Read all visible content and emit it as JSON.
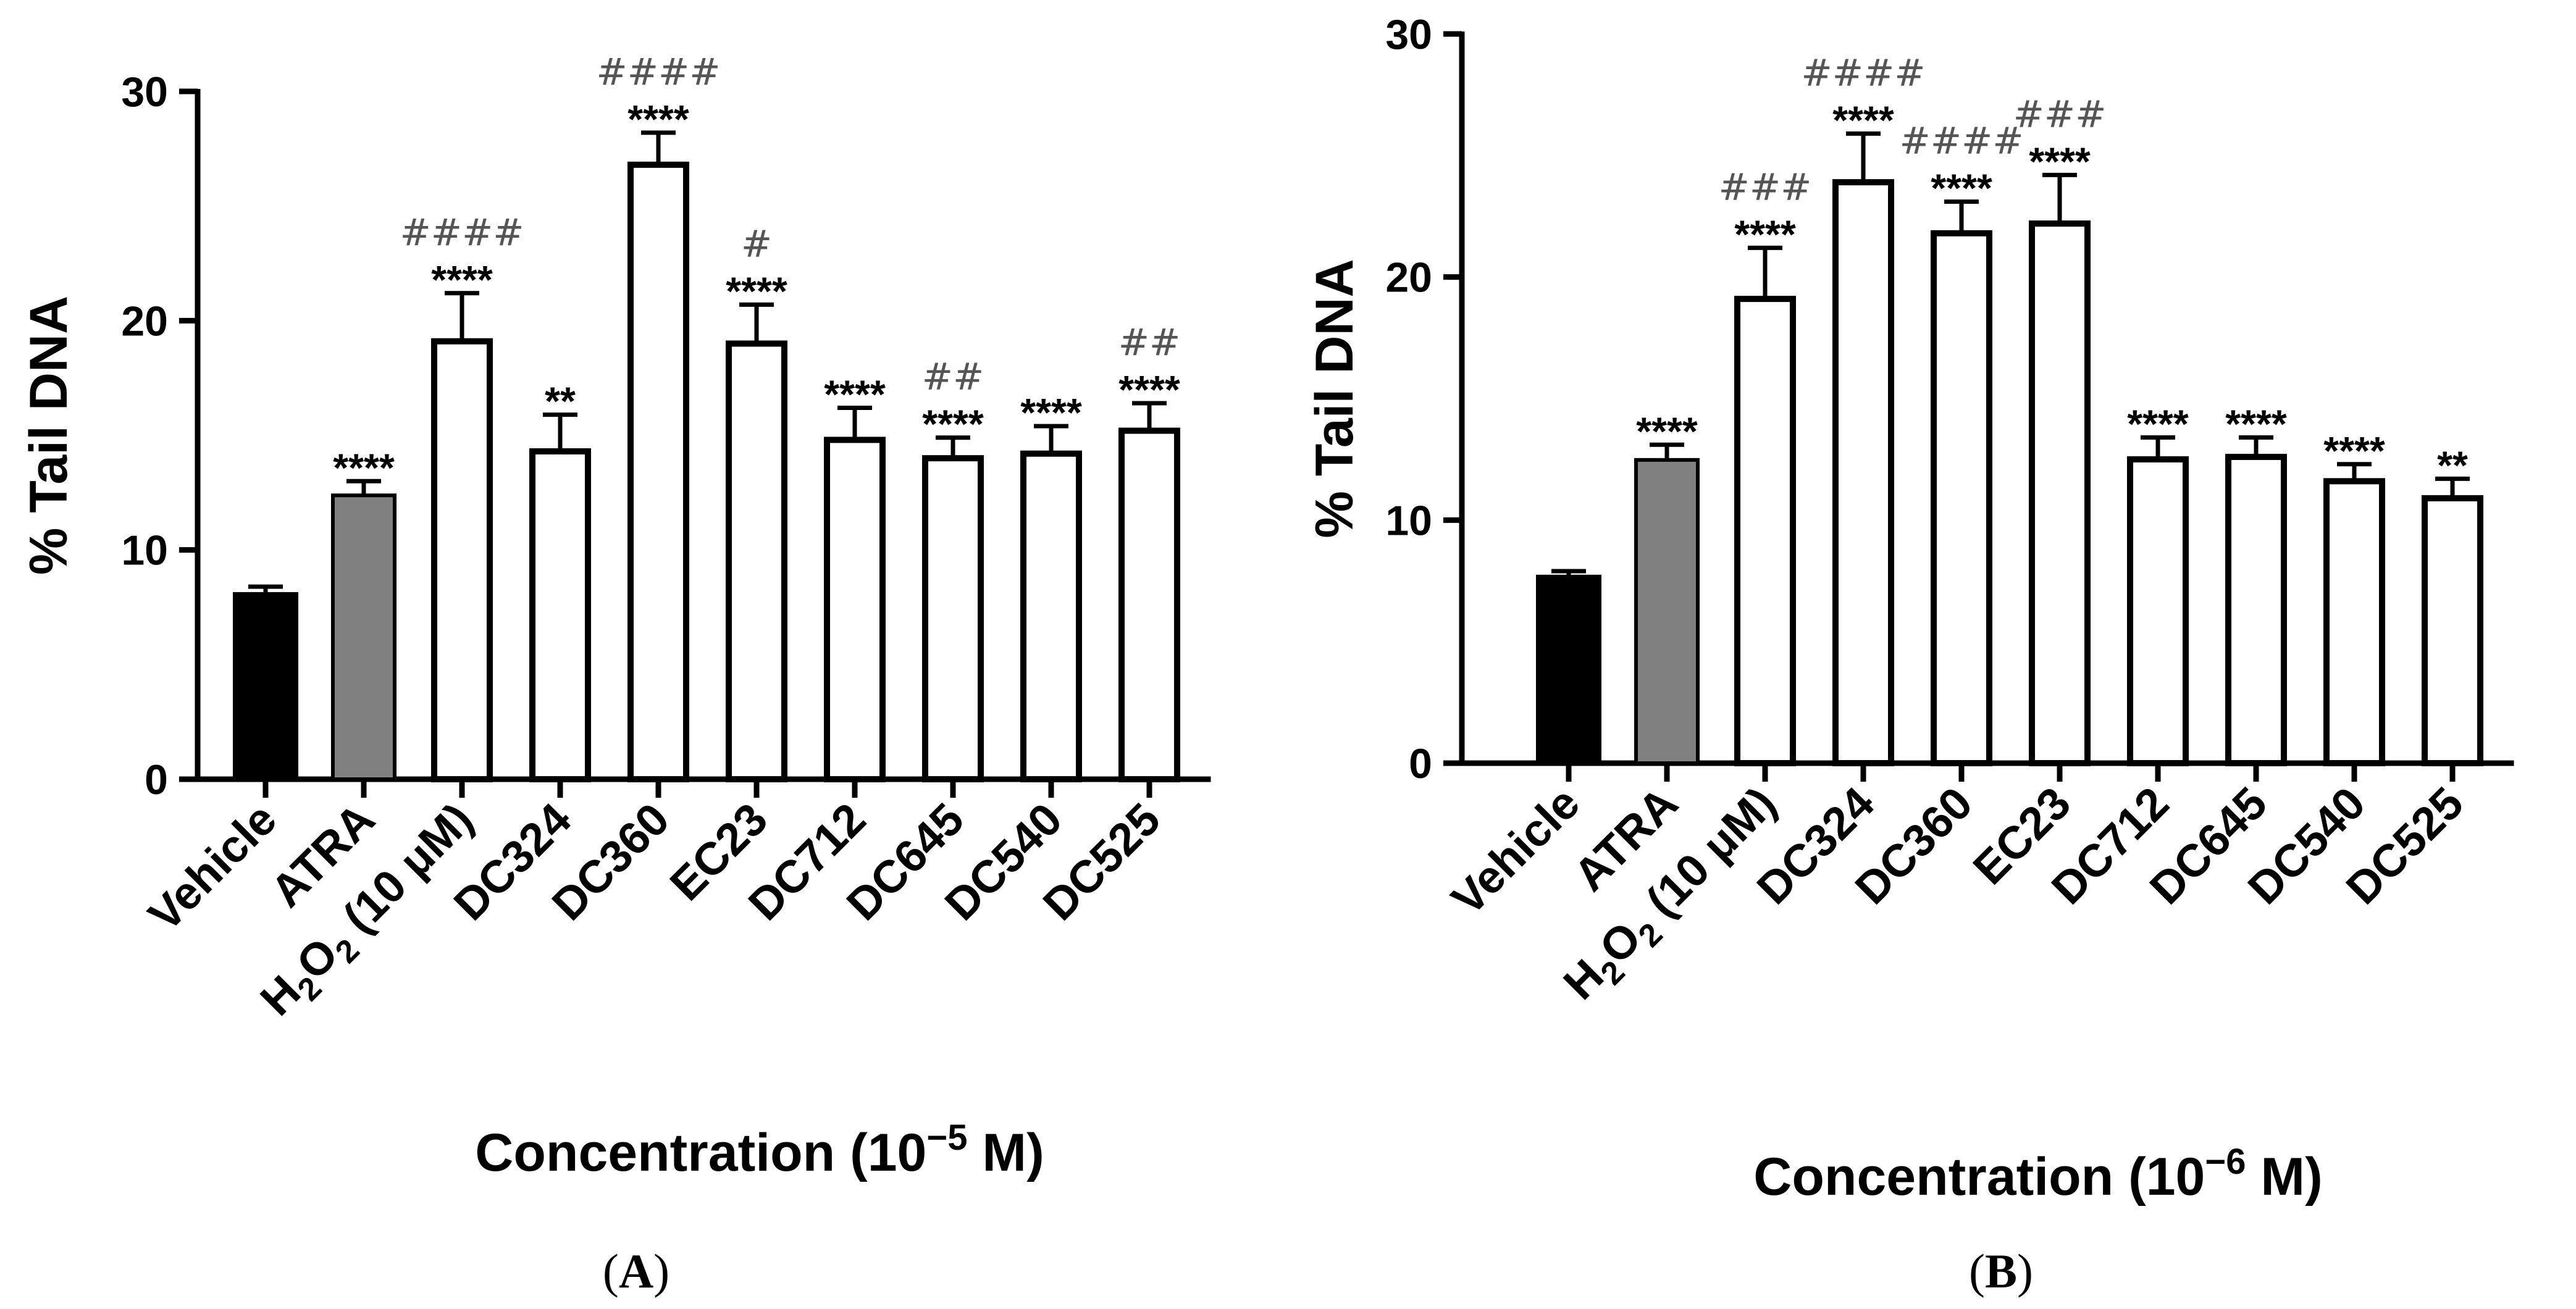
{
  "chart_data": [
    {
      "panel": "A",
      "panel_label": {
        "open": "(",
        "letter": "A",
        "close": ")"
      },
      "type": "bar",
      "ylabel": "% Tail DNA",
      "xlabel": {
        "prefix": "Concentration (10",
        "exponent": "−5",
        "suffix": " M)"
      },
      "ylim": [
        0,
        30
      ],
      "yticks": [
        0,
        10,
        20,
        30
      ],
      "bars": [
        {
          "label": "Vehicle",
          "value": 8.0,
          "error": 0.4,
          "color": "#000000",
          "stars": "",
          "hashes": ""
        },
        {
          "label": "ATRA",
          "value": 12.3,
          "error": 0.7,
          "color": "#808080",
          "stars": "****",
          "hashes": ""
        },
        {
          "label": "H2O2 (10 μM)",
          "label_parts": [
            "H",
            "2",
            "O",
            "2",
            " (10 μM)"
          ],
          "value": 19.1,
          "error": 2.1,
          "color": "#ffffff",
          "stars": "****",
          "hashes": "####"
        },
        {
          "label": "DC324",
          "value": 14.3,
          "error": 1.6,
          "color": "#ffffff",
          "stars": "**",
          "hashes": ""
        },
        {
          "label": "DC360",
          "value": 26.8,
          "error": 1.4,
          "color": "#ffffff",
          "stars": "****",
          "hashes": "####"
        },
        {
          "label": "EC23",
          "value": 19.0,
          "error": 1.7,
          "color": "#ffffff",
          "stars": "****",
          "hashes": "#"
        },
        {
          "label": "DC712",
          "value": 14.8,
          "error": 1.4,
          "color": "#ffffff",
          "stars": "****",
          "hashes": ""
        },
        {
          "label": "DC645",
          "value": 14.0,
          "error": 0.9,
          "color": "#ffffff",
          "stars": "****",
          "hashes": "##"
        },
        {
          "label": "DC540",
          "value": 14.2,
          "error": 1.2,
          "color": "#ffffff",
          "stars": "****",
          "hashes": ""
        },
        {
          "label": "DC525",
          "value": 15.2,
          "error": 1.2,
          "color": "#ffffff",
          "stars": "****",
          "hashes": "##"
        }
      ]
    },
    {
      "panel": "B",
      "panel_label": {
        "open": "(",
        "letter": "B",
        "close": ")"
      },
      "type": "bar",
      "ylabel": "% Tail DNA",
      "xlabel": {
        "prefix": "Concentration (10",
        "exponent": "−6",
        "suffix": " M)"
      },
      "ylim": [
        0,
        30
      ],
      "yticks": [
        0,
        10,
        20,
        30
      ],
      "bars": [
        {
          "label": "Vehicle",
          "value": 7.6,
          "error": 0.3,
          "color": "#000000",
          "stars": "",
          "hashes": ""
        },
        {
          "label": "ATRA",
          "value": 12.4,
          "error": 0.7,
          "color": "#808080",
          "stars": "****",
          "hashes": ""
        },
        {
          "label": "H2O2 (10 μM)",
          "label_parts": [
            "H",
            "2",
            "O",
            "2",
            " (10 μM)"
          ],
          "value": 19.1,
          "error": 2.1,
          "color": "#ffffff",
          "stars": "****",
          "hashes": "###"
        },
        {
          "label": "DC324",
          "value": 23.9,
          "error": 2.0,
          "color": "#ffffff",
          "stars": "****",
          "hashes": "####"
        },
        {
          "label": "DC360",
          "value": 21.8,
          "error": 1.3,
          "color": "#ffffff",
          "stars": "****",
          "hashes": "####"
        },
        {
          "label": "EC23",
          "value": 22.2,
          "error": 2.0,
          "color": "#ffffff",
          "stars": "****",
          "hashes": "###"
        },
        {
          "label": "DC712",
          "value": 12.5,
          "error": 0.9,
          "color": "#ffffff",
          "stars": "****",
          "hashes": ""
        },
        {
          "label": "DC645",
          "value": 12.6,
          "error": 0.8,
          "color": "#ffffff",
          "stars": "****",
          "hashes": ""
        },
        {
          "label": "DC540",
          "value": 11.6,
          "error": 0.7,
          "color": "#ffffff",
          "stars": "****",
          "hashes": ""
        },
        {
          "label": "DC525",
          "value": 10.9,
          "error": 0.8,
          "color": "#ffffff",
          "stars": "**",
          "hashes": ""
        }
      ]
    }
  ]
}
